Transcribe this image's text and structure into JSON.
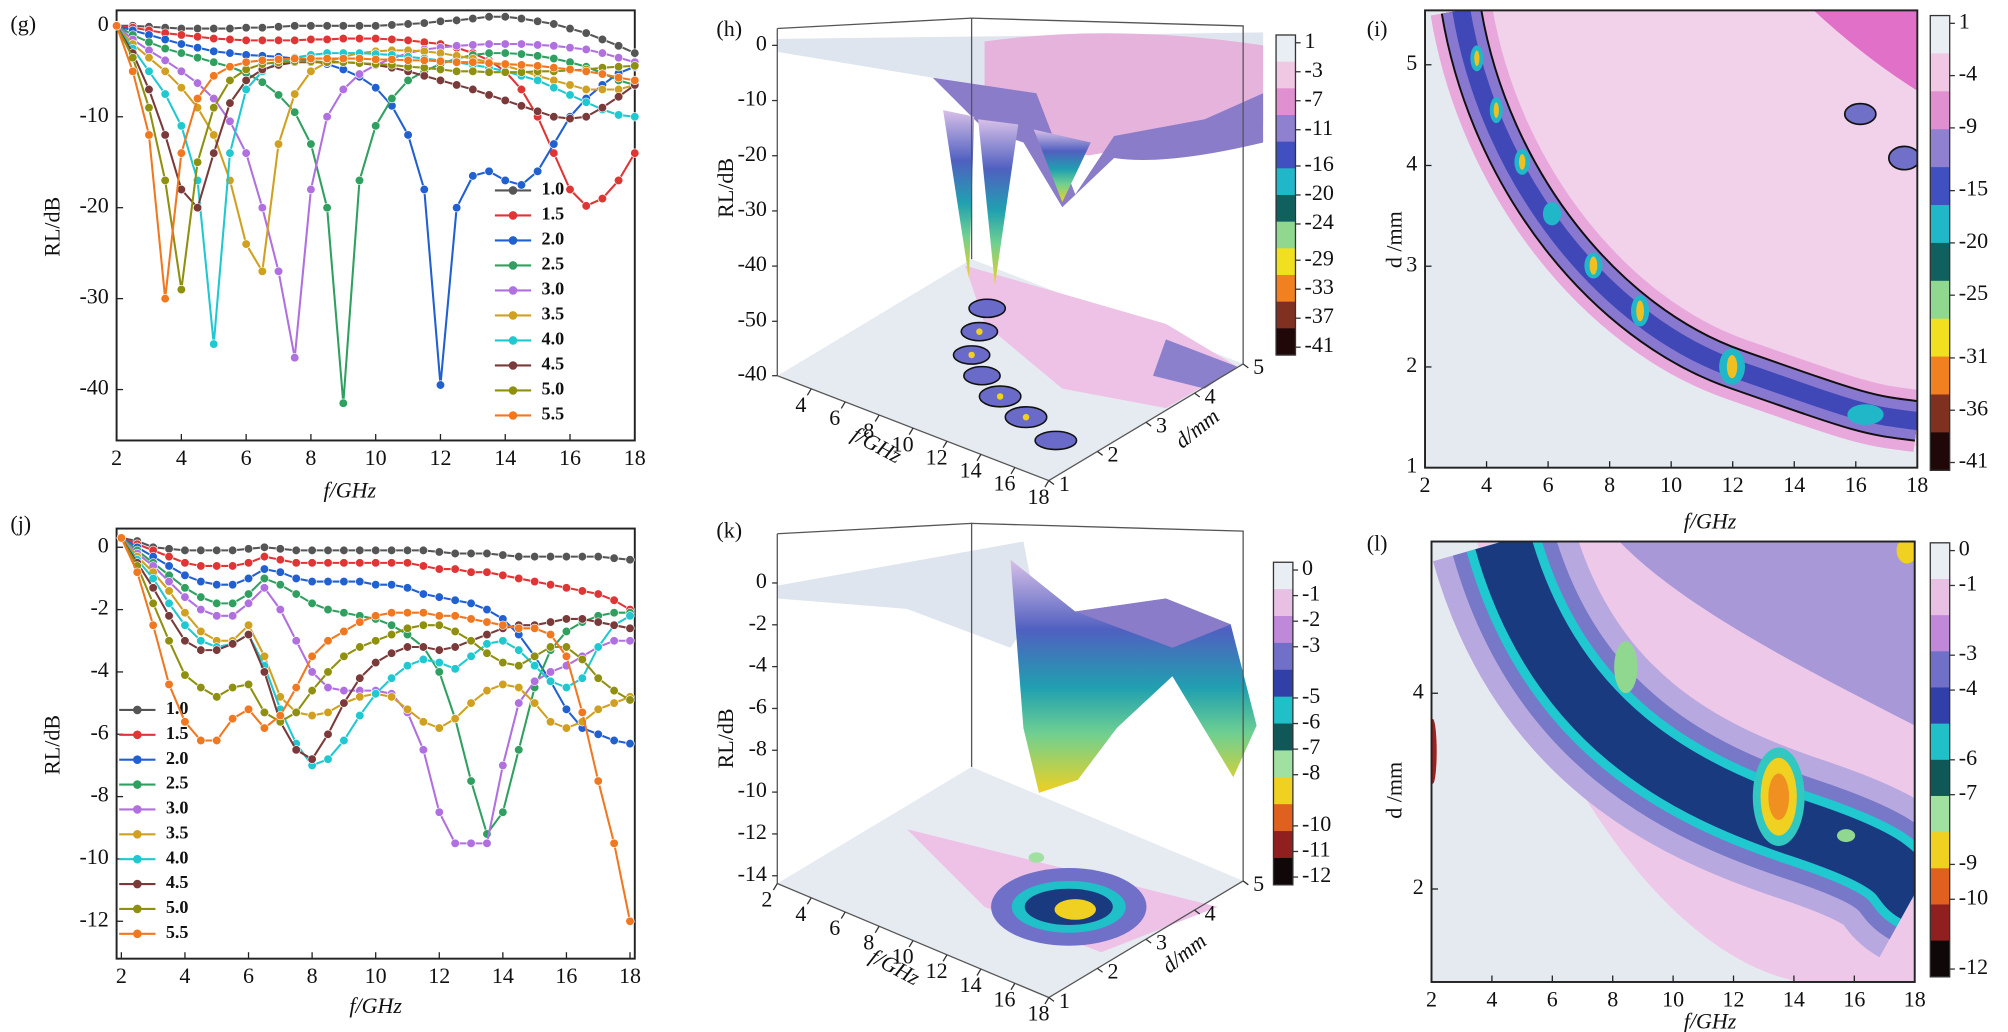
{
  "chart_data": [
    {
      "type": "line",
      "label": "(g)",
      "xlabel": "f/GHz",
      "ylabel": "RL/dB",
      "xlim": [
        2,
        18
      ],
      "ylim": [
        -45.6,
        1.7
      ],
      "xticks": [
        2,
        4,
        6,
        8,
        10,
        12,
        14,
        16,
        18
      ],
      "yticks": [
        0,
        -10,
        -20,
        -30,
        -40
      ],
      "x": [
        2,
        2.5,
        3,
        3.5,
        4,
        4.5,
        5,
        5.5,
        6,
        6.5,
        7,
        7.5,
        8,
        8.5,
        9,
        9.5,
        10,
        10.5,
        11,
        11.5,
        12,
        12.5,
        13,
        13.5,
        14,
        14.5,
        15,
        15.5,
        16,
        16.5,
        17,
        17.5,
        18
      ],
      "series": [
        {
          "name": "1.0",
          "color": "#555555",
          "values": [
            0,
            0,
            -0.1,
            -0.2,
            -0.3,
            -0.3,
            -0.3,
            -0.3,
            -0.2,
            -0.2,
            -0.1,
            0,
            0,
            0,
            0,
            0,
            0,
            0.1,
            0.2,
            0.3,
            0.5,
            0.6,
            0.8,
            1.0,
            1.0,
            0.8,
            0.5,
            0.2,
            -0.3,
            -0.8,
            -1.5,
            -2.2,
            -3
          ]
        },
        {
          "name": "1.5",
          "color": "#e03535",
          "values": [
            0,
            -0.2,
            -0.5,
            -0.8,
            -1,
            -1.2,
            -1.4,
            -1.5,
            -1.6,
            -1.6,
            -1.6,
            -1.6,
            -1.5,
            -1.5,
            -1.4,
            -1.4,
            -1.4,
            -1.5,
            -1.6,
            -1.8,
            -2,
            -2.4,
            -3,
            -3.8,
            -5,
            -7,
            -10,
            -14,
            -18,
            -19.8,
            -19,
            -17,
            -14
          ]
        },
        {
          "name": "2.0",
          "color": "#2060d0",
          "values": [
            0,
            -0.5,
            -1,
            -1.5,
            -2,
            -2.4,
            -2.8,
            -3,
            -3.2,
            -3.3,
            -3.4,
            -3.6,
            -3.8,
            -4.2,
            -4.8,
            -5.6,
            -6.8,
            -8.8,
            -12,
            -18,
            -39.5,
            -20,
            -16.5,
            -16,
            -17,
            -17.5,
            -16,
            -13,
            -10,
            -8,
            -6.5,
            -5.2,
            -4.5
          ]
        },
        {
          "name": "2.5",
          "color": "#30a060",
          "values": [
            0,
            -1,
            -1.8,
            -2.5,
            -3,
            -3.5,
            -4,
            -4.5,
            -5.2,
            -6.2,
            -7.6,
            -9.5,
            -13,
            -20,
            -41.5,
            -17,
            -11,
            -8,
            -6,
            -5,
            -4.2,
            -3.6,
            -3.2,
            -3,
            -3,
            -3.1,
            -3.3,
            -3.6,
            -4,
            -4.5,
            -5.2,
            -6,
            -6.5
          ]
        },
        {
          "name": "3.0",
          "color": "#b070e0",
          "values": [
            0,
            -1.5,
            -2.7,
            -3.8,
            -5,
            -6.3,
            -8,
            -10.5,
            -14,
            -20,
            -27,
            -36.5,
            -18,
            -10,
            -7,
            -5.3,
            -4.3,
            -3.6,
            -3,
            -2.6,
            -2.4,
            -2.2,
            -2.1,
            -2,
            -2,
            -2,
            -2.1,
            -2.2,
            -2.4,
            -2.6,
            -3,
            -3.5,
            -4
          ]
        },
        {
          "name": "3.5",
          "color": "#d0a020",
          "values": [
            0,
            -2,
            -3.5,
            -5,
            -6.8,
            -9,
            -12,
            -17,
            -24,
            -27,
            -13,
            -7.5,
            -5,
            -4,
            -3.4,
            -3,
            -2.8,
            -2.7,
            -2.7,
            -2.8,
            -3,
            -3.3,
            -3.6,
            -4,
            -4.4,
            -4.9,
            -5.5,
            -6,
            -6.5,
            -7,
            -7,
            -7,
            -6.5
          ]
        },
        {
          "name": "4.0",
          "color": "#20c8d0",
          "values": [
            0,
            -2.5,
            -5,
            -7.5,
            -11,
            -17,
            -35,
            -14,
            -7,
            -5,
            -4,
            -3.5,
            -3.2,
            -3,
            -3,
            -3,
            -3.1,
            -3.2,
            -3.4,
            -3.6,
            -3.8,
            -4,
            -4.3,
            -4.6,
            -5,
            -5.5,
            -6,
            -6.8,
            -7.6,
            -8.4,
            -9.2,
            -9.8,
            -10
          ]
        },
        {
          "name": "4.5",
          "color": "#7a3a3a",
          "values": [
            0,
            -3,
            -7,
            -12,
            -18,
            -20,
            -14,
            -8.5,
            -6,
            -4.8,
            -4.3,
            -4,
            -4,
            -4,
            -4,
            -4.1,
            -4.3,
            -4.6,
            -5,
            -5.5,
            -6,
            -6.5,
            -7,
            -7.6,
            -8.2,
            -8.8,
            -9.4,
            -10,
            -10.2,
            -10,
            -9,
            -7.8,
            -6.5
          ]
        },
        {
          "name": "5.0",
          "color": "#909010",
          "values": [
            0,
            -3.5,
            -9,
            -17,
            -29,
            -15,
            -9,
            -6,
            -4.8,
            -4.2,
            -4,
            -3.9,
            -3.9,
            -4,
            -4,
            -4.1,
            -4.2,
            -4.3,
            -4.5,
            -4.6,
            -4.8,
            -5,
            -5,
            -5.1,
            -5.1,
            -5.1,
            -5,
            -5,
            -4.9,
            -4.8,
            -4.6,
            -4.5,
            -4.4
          ]
        },
        {
          "name": "5.5",
          "color": "#f07820",
          "values": [
            0,
            -5,
            -12,
            -30,
            -14,
            -8,
            -5.5,
            -4.5,
            -4,
            -3.8,
            -3.7,
            -3.6,
            -3.6,
            -3.6,
            -3.6,
            -3.6,
            -3.7,
            -3.7,
            -3.8,
            -3.8,
            -3.9,
            -4,
            -4,
            -4.1,
            -4.2,
            -4.3,
            -4.4,
            -4.6,
            -4.8,
            -5,
            -5.3,
            -5.7,
            -6
          ]
        }
      ]
    },
    {
      "type": "surface3d",
      "label": "(h)",
      "xlabel": "f/GHz",
      "ylabel": "d/mm",
      "zlabel": "RL/dB",
      "xlim": [
        2,
        18
      ],
      "ylim": [
        1,
        5
      ],
      "zlim": [
        -50,
        0
      ],
      "xticks": [
        4,
        6,
        8,
        10,
        12,
        14,
        16,
        18
      ],
      "yticks": [
        1,
        2,
        3,
        4,
        5
      ],
      "zticks": [
        0,
        -10,
        -20,
        -30,
        -40,
        -50
      ],
      "zfloor_tick": -40,
      "clim": [
        -41,
        1
      ],
      "cticks": [
        1,
        -3,
        -7,
        -11,
        -16,
        -20,
        -24,
        -29,
        -33,
        -37,
        -41
      ],
      "colormap": [
        "#e8eef4",
        "#f0c8e4",
        "#e090d0",
        "#9080d0",
        "#4050c0",
        "#20b8c8",
        "#106060",
        "#90d890",
        "#f0e020",
        "#f08020",
        "#803020",
        "#200808"
      ]
    },
    {
      "type": "contour",
      "label": "(i)",
      "xlabel": "f/GHz",
      "ylabel": "d /mm",
      "xlim": [
        2,
        18
      ],
      "ylim": [
        1,
        5.54
      ],
      "xticks": [
        2,
        4,
        6,
        8,
        10,
        12,
        14,
        16,
        18
      ],
      "yticks": [
        1,
        2,
        3,
        4,
        5
      ],
      "clim": [
        -41,
        1
      ],
      "cticks": [
        1,
        -4,
        -9,
        -15,
        -20,
        -25,
        -31,
        -36,
        -41
      ],
      "colormap": [
        "#e8eef4",
        "#f0c8e4",
        "#e090d0",
        "#9080d0",
        "#4050c0",
        "#20b8c8",
        "#106060",
        "#90d890",
        "#f0e020",
        "#f08020",
        "#803020",
        "#200808"
      ]
    },
    {
      "type": "line",
      "label": "(j)",
      "xlabel": "f/GHz",
      "ylabel": "RL/dB",
      "xlim": [
        1.85,
        18.15
      ],
      "ylim": [
        -13.2,
        0.6
      ],
      "xticks": [
        2,
        4,
        6,
        8,
        10,
        12,
        14,
        16,
        18
      ],
      "yticks": [
        0,
        -2,
        -4,
        -6,
        -8,
        -10,
        -12
      ],
      "x": [
        2,
        2.5,
        3,
        3.5,
        4,
        4.5,
        5,
        5.5,
        6,
        6.5,
        7,
        7.5,
        8,
        8.5,
        9,
        9.5,
        10,
        10.5,
        11,
        11.5,
        12,
        12.5,
        13,
        13.5,
        14,
        14.5,
        15,
        15.5,
        16,
        16.5,
        17,
        17.5,
        18
      ],
      "series": [
        {
          "name": "1.0",
          "color": "#555555",
          "values": [
            0.3,
            0.2,
            0,
            -0.05,
            -0.1,
            -0.1,
            -0.1,
            -0.1,
            -0.05,
            0,
            -0.05,
            -0.1,
            -0.1,
            -0.1,
            -0.1,
            -0.1,
            -0.1,
            -0.1,
            -0.1,
            -0.1,
            -0.15,
            -0.2,
            -0.2,
            -0.2,
            -0.25,
            -0.3,
            -0.3,
            -0.3,
            -0.3,
            -0.3,
            -0.3,
            -0.35,
            -0.4
          ]
        },
        {
          "name": "1.5",
          "color": "#e03535",
          "values": [
            0.3,
            0.1,
            -0.1,
            -0.3,
            -0.5,
            -0.6,
            -0.6,
            -0.6,
            -0.5,
            -0.3,
            -0.4,
            -0.5,
            -0.5,
            -0.5,
            -0.5,
            -0.5,
            -0.5,
            -0.5,
            -0.5,
            -0.6,
            -0.7,
            -0.7,
            -0.8,
            -0.8,
            -0.9,
            -1.0,
            -1.1,
            -1.2,
            -1.3,
            -1.4,
            -1.5,
            -1.7,
            -2
          ]
        },
        {
          "name": "2.0",
          "color": "#2060d0",
          "values": [
            0.3,
            0,
            -0.3,
            -0.6,
            -0.9,
            -1.1,
            -1.2,
            -1.2,
            -1,
            -0.7,
            -0.8,
            -1,
            -1.1,
            -1.1,
            -1.1,
            -1.1,
            -1.2,
            -1.2,
            -1.3,
            -1.5,
            -1.6,
            -1.7,
            -1.8,
            -2,
            -2.3,
            -2.8,
            -3.5,
            -4.3,
            -5.2,
            -5.8,
            -6,
            -6.2,
            -6.3
          ]
        },
        {
          "name": "2.5",
          "color": "#30a060",
          "values": [
            0.3,
            -0.1,
            -0.5,
            -0.9,
            -1.3,
            -1.6,
            -1.8,
            -1.8,
            -1.5,
            -1,
            -1.2,
            -1.5,
            -1.8,
            -2,
            -2.1,
            -2.2,
            -2.3,
            -2.5,
            -2.8,
            -3.2,
            -4,
            -5.5,
            -7.5,
            -9.2,
            -8.5,
            -6.5,
            -4.5,
            -3.3,
            -2.7,
            -2.4,
            -2.2,
            -2.1,
            -2.1
          ]
        },
        {
          "name": "3.0",
          "color": "#b070e0",
          "values": [
            0.3,
            -0.2,
            -0.6,
            -1.1,
            -1.6,
            -2,
            -2.2,
            -2.2,
            -1.8,
            -1.3,
            -2,
            -3,
            -4,
            -4.5,
            -4.6,
            -4.6,
            -4.6,
            -4.7,
            -5.3,
            -6.5,
            -8.5,
            -9.5,
            -9.5,
            -9.5,
            -7,
            -5,
            -4.3,
            -4,
            -3.8,
            -3.5,
            -3.2,
            -3,
            -3
          ]
        },
        {
          "name": "3.5",
          "color": "#d0a020",
          "values": [
            0.3,
            -0.3,
            -0.8,
            -1.4,
            -2.1,
            -2.7,
            -3,
            -3,
            -2.5,
            -3.5,
            -4.8,
            -5.3,
            -5.4,
            -5.3,
            -5,
            -4.8,
            -4.7,
            -4.8,
            -5.2,
            -5.6,
            -5.8,
            -5.5,
            -5,
            -4.6,
            -4.4,
            -4.5,
            -5,
            -5.6,
            -5.8,
            -5.6,
            -5.2,
            -5,
            -4.8
          ]
        },
        {
          "name": "4.0",
          "color": "#20c8d0",
          "values": [
            0.3,
            -0.4,
            -1,
            -1.8,
            -2.5,
            -3,
            -3.2,
            -3.1,
            -2.8,
            -3.8,
            -5.2,
            -6.3,
            -7,
            -6.8,
            -6.2,
            -5.4,
            -4.7,
            -4.2,
            -3.8,
            -3.6,
            -3.7,
            -3.9,
            -3.5,
            -3.1,
            -3,
            -3.3,
            -3.8,
            -4.3,
            -4.5,
            -4.2,
            -3.2,
            -2.5,
            -2.2
          ]
        },
        {
          "name": "4.5",
          "color": "#7a3a3a",
          "values": [
            0.3,
            -0.5,
            -1.3,
            -2.2,
            -3,
            -3.3,
            -3.3,
            -3.1,
            -2.8,
            -4,
            -5.6,
            -6.5,
            -6.8,
            -6,
            -5,
            -4.2,
            -3.7,
            -3.4,
            -3.2,
            -3.2,
            -3.3,
            -3.2,
            -3,
            -2.8,
            -2.6,
            -2.5,
            -2.5,
            -2.4,
            -2.3,
            -2.3,
            -2.4,
            -2.5,
            -2.6
          ]
        },
        {
          "name": "5.0",
          "color": "#909010",
          "values": [
            0.3,
            -0.6,
            -1.8,
            -3,
            -4.1,
            -4.5,
            -4.8,
            -4.5,
            -4.4,
            -5.3,
            -5.6,
            -5.3,
            -4.6,
            -4,
            -3.5,
            -3.2,
            -3,
            -2.8,
            -2.6,
            -2.5,
            -2.5,
            -2.7,
            -3,
            -3.4,
            -3.7,
            -3.8,
            -3.5,
            -3.2,
            -3.2,
            -3.6,
            -4.2,
            -4.6,
            -4.9
          ]
        },
        {
          "name": "5.5",
          "color": "#f07820",
          "values": [
            0.3,
            -0.8,
            -2.5,
            -4.4,
            -5.6,
            -6.2,
            -6.2,
            -5.5,
            -5.2,
            -5.8,
            -5.4,
            -4.5,
            -3.5,
            -3,
            -2.7,
            -2.4,
            -2.2,
            -2.1,
            -2.1,
            -2.1,
            -2.2,
            -2.2,
            -2.3,
            -2.4,
            -2.5,
            -2.6,
            -2.6,
            -2.8,
            -3.5,
            -5.3,
            -7.5,
            -9.5,
            -12
          ]
        }
      ]
    },
    {
      "type": "surface3d",
      "label": "(k)",
      "xlabel": "f/GHz",
      "ylabel": "d/mm",
      "zlabel": "RL/dB",
      "xlim": [
        2,
        18
      ],
      "ylim": [
        1,
        5
      ],
      "zlim": [
        -14,
        0
      ],
      "xticks": [
        2,
        4,
        6,
        8,
        10,
        12,
        14,
        16,
        18
      ],
      "yticks": [
        1,
        2,
        3,
        4,
        5
      ],
      "zticks": [
        0,
        -2,
        -4,
        -6,
        -8,
        -10,
        -12,
        -14
      ],
      "clim": [
        -12,
        0
      ],
      "cticks": [
        0,
        -1,
        -2,
        -3,
        -5,
        -6,
        -7,
        -8,
        -10,
        -11,
        -12
      ],
      "colormap": [
        "#e8eef4",
        "#e8c0e4",
        "#c088d8",
        "#7070c8",
        "#3040a8",
        "#20c0c8",
        "#105858",
        "#a0e0a0",
        "#f0d020",
        "#e06020",
        "#902020",
        "#100808"
      ]
    },
    {
      "type": "contour",
      "label": "(l)",
      "xlabel": "f/GHz",
      "ylabel": "d /mm",
      "xlim": [
        2,
        18
      ],
      "ylim": [
        1.05,
        5.55
      ],
      "xticks": [
        2,
        4,
        6,
        8,
        10,
        12,
        14,
        16,
        18
      ],
      "yticks": [
        2,
        4
      ],
      "clim": [
        -12,
        0
      ],
      "cticks": [
        0,
        -1,
        -3,
        -4,
        -6,
        -7,
        -9,
        -10,
        -12
      ],
      "colormap": [
        "#e8eef4",
        "#e8c0e4",
        "#c088d8",
        "#7070c8",
        "#3040a8",
        "#20c0c8",
        "#105858",
        "#a0e0a0",
        "#f0d020",
        "#e06020",
        "#902020",
        "#100808"
      ]
    }
  ]
}
